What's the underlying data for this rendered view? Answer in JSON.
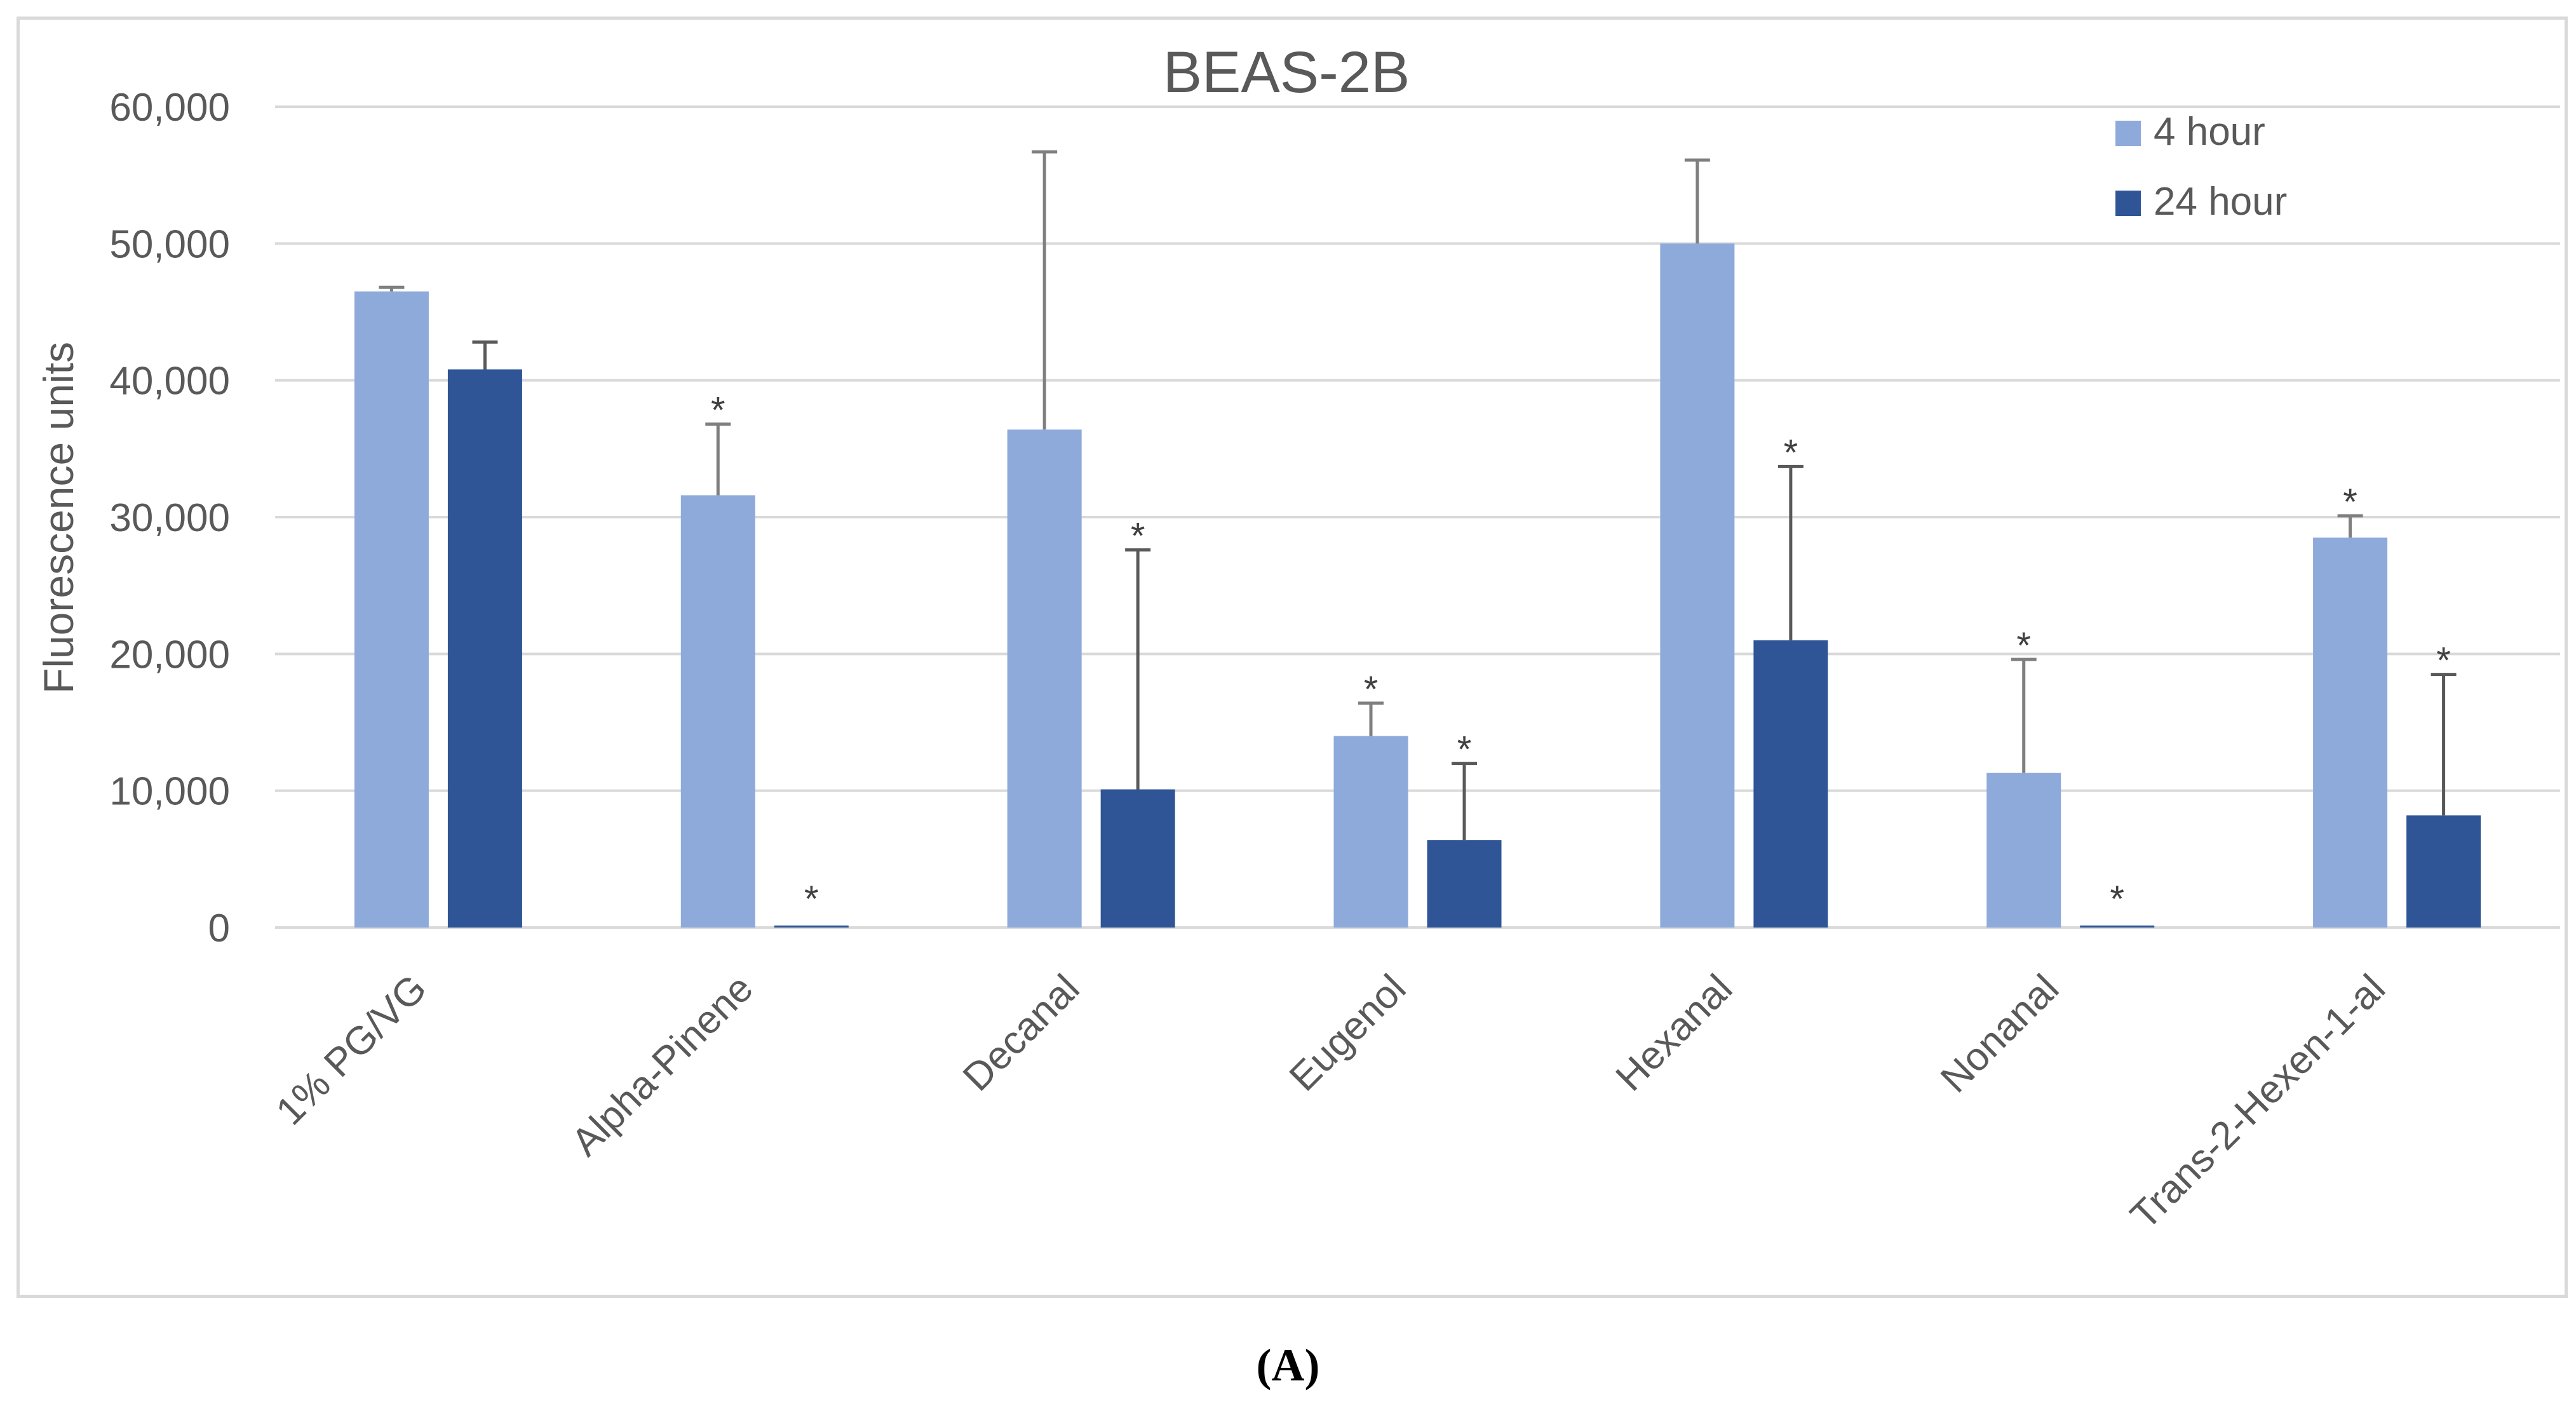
{
  "chart_data": {
    "type": "bar",
    "title": "BEAS-2B",
    "xlabel": "",
    "ylabel": "Fluorescence units",
    "ylim": [
      0,
      60000
    ],
    "yticks": [
      0,
      10000,
      20000,
      30000,
      40000,
      50000,
      60000
    ],
    "ytick_labels": [
      "0",
      "10,000",
      "20,000",
      "30,000",
      "40,000",
      "50,000",
      "60,000"
    ],
    "grid": true,
    "legend_position": "top-right",
    "categories": [
      "1% PG/VG",
      "Alpha-Pinene",
      "Decanal",
      "Eugenol",
      "Hexanal",
      "Nonanal",
      "Trans-2-Hexen-1-al"
    ],
    "series": [
      {
        "name": "4 hour",
        "color": "#8eaadb",
        "values": [
          46500,
          31600,
          36400,
          14000,
          50000,
          11300,
          28500
        ],
        "errors": [
          300,
          5200,
          20300,
          2400,
          6100,
          8300,
          1600
        ],
        "significance": [
          "",
          "*",
          "",
          "*",
          "",
          "*",
          "*"
        ]
      },
      {
        "name": "24 hour",
        "color": "#2f5597",
        "values": [
          40800,
          150,
          10100,
          6400,
          21000,
          150,
          8200
        ],
        "errors": [
          2000,
          0,
          17500,
          5600,
          12700,
          0,
          10300
        ],
        "significance": [
          "",
          "*",
          "*",
          "*",
          "*",
          "*",
          "*"
        ]
      }
    ],
    "error_bar_colors": [
      "#7f7f7f",
      "#595959"
    ]
  },
  "figure": {
    "caption": "(A)"
  }
}
